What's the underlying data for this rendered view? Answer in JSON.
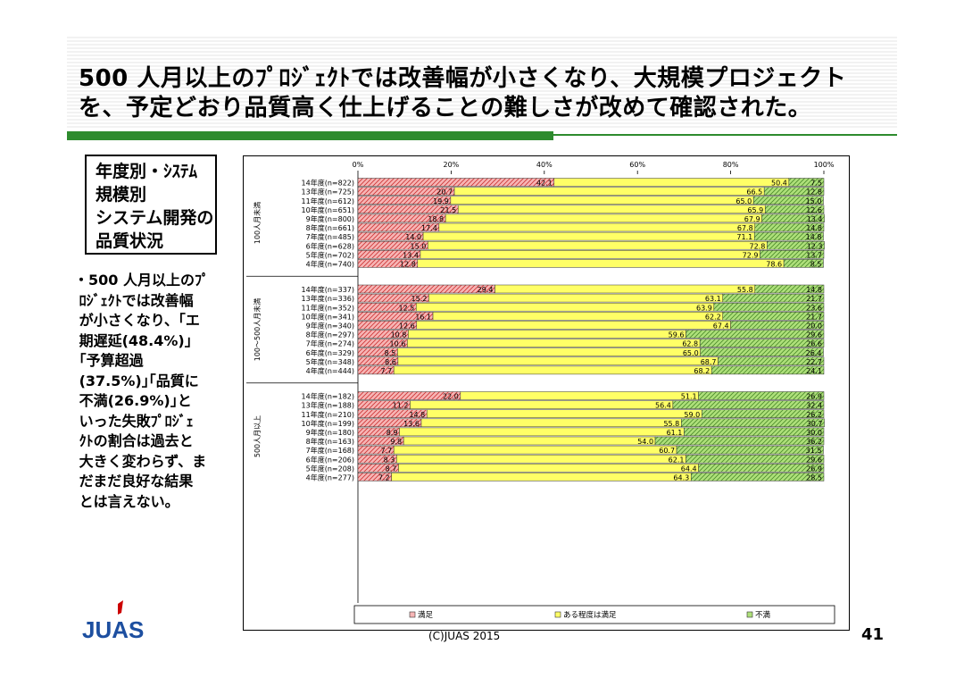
{
  "title_line1": "500 人月以上のﾌﾟﾛｼﾞｪｸﾄでは改善幅が小さくなり、大規模プロジェクト",
  "title_line2": "を、予定どおり品質高く仕上げることの難しさが改めて確認された。",
  "sidebox": "年度別・ｼｽﾃﾑ\n規模別\nシステム開発の\n品質状況",
  "note": "・500 人月以上のﾌﾟ\n ﾛｼﾞｪｸﾄでは改善幅\n が小さくなり、｢エ\n 期遅延(48.4%)｣\n ｢予算超過\n (37.5%)｣｢品質に\n 不満(26.9%)｣と\n いった失敗ﾌﾟﾛｼﾞｪ\n ｸﾄの割合は過去と\n 大きく変わらず、ま\n だまだ良好な結果\n とは言えない。",
  "logo_text": "JUAS",
  "footer": "(C)JUAS 2015",
  "page_number": "41",
  "colors": {
    "satisfied": "#f7b5b5",
    "satisfied_hatch": "#cc3333",
    "somewhat": "#ffff66",
    "unsatisfied": "#aee07a",
    "unsatisfied_hatch": "#4a8a2a",
    "green_accent": "#2e8b2e",
    "logo_red": "#cc0000",
    "logo_blue": "#1d4fa0"
  },
  "chart_data": {
    "type": "bar",
    "orientation": "horizontal-stacked-100",
    "x_ticks": [
      "0%",
      "20%",
      "40%",
      "60%",
      "80%",
      "100%"
    ],
    "xlim": [
      0,
      100
    ],
    "legend_position": "bottom",
    "series_names": [
      "満足",
      "ある程度は満足",
      "不満"
    ],
    "groups": [
      {
        "label": "100人月未満",
        "rows": [
          {
            "category": "14年度(n=822)",
            "values": [
              42.1,
              50.4,
              7.5
            ]
          },
          {
            "category": "13年度(n=725)",
            "values": [
              20.7,
              66.5,
              12.8
            ]
          },
          {
            "category": "11年度(n=612)",
            "values": [
              19.9,
              65.0,
              15.0
            ]
          },
          {
            "category": "10年度(n=651)",
            "values": [
              21.5,
              65.9,
              12.6
            ]
          },
          {
            "category": "9年度(n=800)",
            "values": [
              18.8,
              67.9,
              13.4
            ]
          },
          {
            "category": "8年度(n=661)",
            "values": [
              17.4,
              67.8,
              14.8
            ]
          },
          {
            "category": "7年度(n=485)",
            "values": [
              14.0,
              71.1,
              14.8
            ]
          },
          {
            "category": "6年度(n=628)",
            "values": [
              15.0,
              72.8,
              12.3
            ]
          },
          {
            "category": "5年度(n=702)",
            "values": [
              13.4,
              72.9,
              13.7
            ]
          },
          {
            "category": "4年度(n=740)",
            "values": [
              12.8,
              78.6,
              8.5
            ]
          }
        ]
      },
      {
        "label": "100〜500人月未満",
        "rows": [
          {
            "category": "14年度(n=337)",
            "values": [
              29.4,
              55.8,
              14.8
            ]
          },
          {
            "category": "13年度(n=336)",
            "values": [
              15.2,
              63.1,
              21.7
            ]
          },
          {
            "category": "11年度(n=352)",
            "values": [
              12.5,
              63.9,
              23.6
            ]
          },
          {
            "category": "10年度(n=341)",
            "values": [
              16.1,
              62.2,
              21.7
            ]
          },
          {
            "category": "9年度(n=340)",
            "values": [
              12.6,
              67.4,
              20.0
            ]
          },
          {
            "category": "8年度(n=297)",
            "values": [
              10.8,
              59.6,
              29.6
            ]
          },
          {
            "category": "7年度(n=274)",
            "values": [
              10.6,
              62.8,
              26.6
            ]
          },
          {
            "category": "6年度(n=329)",
            "values": [
              8.5,
              65.0,
              26.4
            ]
          },
          {
            "category": "5年度(n=348)",
            "values": [
              8.6,
              68.7,
              22.7
            ]
          },
          {
            "category": "4年度(n=444)",
            "values": [
              7.7,
              68.2,
              24.1
            ]
          }
        ]
      },
      {
        "label": "500人月以上",
        "rows": [
          {
            "category": "14年度(n=182)",
            "values": [
              22.0,
              51.1,
              26.9
            ]
          },
          {
            "category": "13年度(n=188)",
            "values": [
              11.2,
              56.4,
              32.4
            ]
          },
          {
            "category": "11年度(n=210)",
            "values": [
              14.8,
              59.0,
              26.2
            ]
          },
          {
            "category": "10年度(n=199)",
            "values": [
              13.6,
              55.8,
              30.7
            ]
          },
          {
            "category": "9年度(n=180)",
            "values": [
              8.9,
              61.1,
              30.0
            ]
          },
          {
            "category": "8年度(n=163)",
            "values": [
              9.8,
              54.0,
              36.2
            ]
          },
          {
            "category": "7年度(n=168)",
            "values": [
              7.7,
              60.7,
              31.5
            ]
          },
          {
            "category": "6年度(n=206)",
            "values": [
              8.3,
              62.1,
              29.6
            ]
          },
          {
            "category": "5年度(n=208)",
            "values": [
              8.7,
              64.4,
              26.9
            ]
          },
          {
            "category": "4年度(n=277)",
            "values": [
              7.2,
              64.3,
              28.5
            ]
          }
        ]
      }
    ]
  }
}
